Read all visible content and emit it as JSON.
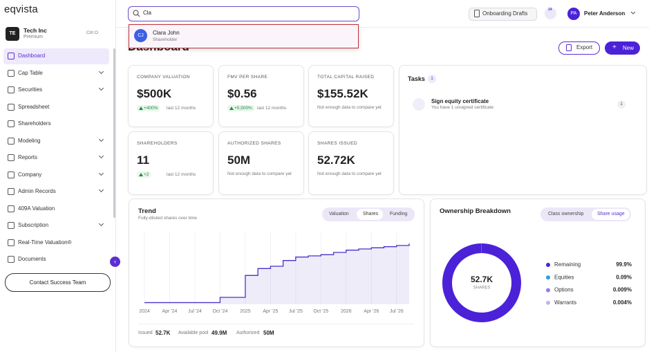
{
  "brand": "eqvista",
  "search": {
    "query": "Cla",
    "results": [
      {
        "initials": "CJ",
        "name": "Clara John",
        "role": "Shareholder"
      }
    ]
  },
  "header": {
    "drafts": "Onboarding Drafts",
    "badge": "14",
    "user": {
      "initials": "PA",
      "name": "Peter Anderson"
    }
  },
  "sidebar": {
    "company": {
      "initials": "TE",
      "name": "Tech Inc",
      "plan": "Premium",
      "shortcut": "Ctrl O"
    },
    "nav": [
      {
        "label": "Dashboard",
        "active": true
      },
      {
        "label": "Cap Table",
        "expand": true
      },
      {
        "label": "Securities",
        "expand": true
      },
      {
        "label": "Spreadsheet"
      },
      {
        "label": "Shareholders"
      },
      {
        "label": "Modeling",
        "expand": true
      },
      {
        "label": "Reports",
        "expand": true
      },
      {
        "label": "Company",
        "expand": true
      },
      {
        "label": "Admin Records",
        "expand": true
      },
      {
        "label": "409A Valuation"
      },
      {
        "label": "Subscription",
        "expand": true
      },
      {
        "label": "Real-Time Valuation®"
      },
      {
        "label": "Documents"
      }
    ],
    "contact": "Contact Success Team"
  },
  "page": {
    "title": "Dashboard",
    "export": "Export",
    "new": "New"
  },
  "stats": [
    {
      "label": "COMPANY VALUATION",
      "value": "$500K",
      "change": "+400%",
      "period": "last 12 months"
    },
    {
      "label": "FMV PER SHARE",
      "value": "$0.56",
      "change": "+5,500%",
      "period": "last 12 months"
    },
    {
      "label": "TOTAL CAPITAL RAISED",
      "value": "$155.52K",
      "note": "Not enough data to compare yet"
    },
    {
      "label": "SHAREHOLDERS",
      "value": "11",
      "change": "+2",
      "period": "last 12 months"
    },
    {
      "label": "AUTHORIZED SHARES",
      "value": "50M",
      "note": "Not enough data to compare yet"
    },
    {
      "label": "SHARES ISSUED",
      "value": "52.72K",
      "note": "Not enough data to compare yet"
    }
  ],
  "tasks": {
    "title": "Tasks",
    "count": "1",
    "items": [
      {
        "title": "Sign equity certificate",
        "description": "You have 1 unsigned certificate",
        "count": "1"
      }
    ]
  },
  "trend": {
    "title": "Trend",
    "subtitle": "Fully-diluted shares over time",
    "tabs": [
      "Valuation",
      "Shares",
      "Funding"
    ],
    "footer": [
      {
        "label": "Issued",
        "value": "52.7K"
      },
      {
        "label": "Available pool",
        "value": "49.9M"
      },
      {
        "label": "Authorized",
        "value": "50M"
      }
    ]
  },
  "ownership": {
    "title": "Ownership Breakdown",
    "tabs": [
      "Class ownership",
      "Share usage"
    ]
  },
  "chart_data": [
    {
      "type": "line",
      "categories": [
        "2024",
        null,
        "Apr '24",
        null,
        "Jul '24",
        null,
        "Oct '24",
        null,
        "2025",
        null,
        "Apr '25",
        null,
        "Jul '25",
        null,
        "Oct '25",
        null,
        "2026",
        null,
        "Apr '26",
        null,
        "Jul '26",
        null
      ],
      "values": [
        1.5,
        1.5,
        1.5,
        1.5,
        1.5,
        1.5,
        6,
        6,
        25,
        31,
        33,
        38,
        41,
        42,
        43,
        45,
        47,
        48,
        49,
        50,
        51,
        52.7
      ],
      "ylim": [
        0,
        60
      ],
      "color": "#4b2fc9",
      "grid": true
    },
    {
      "type": "pie",
      "center_value": "52.7K",
      "center_label": "SHARES",
      "categories": [
        "Remaining",
        "Equities",
        "Options",
        "Warrants"
      ],
      "values": [
        99.9,
        0.09,
        0.009,
        0.004
      ],
      "value_labels": [
        "99.9%",
        "0.09%",
        "0.009%",
        "0.004%"
      ],
      "colors": [
        "#4b22d8",
        "#2f9be8",
        "#9a7be6",
        "#c4b3ef"
      ]
    }
  ]
}
